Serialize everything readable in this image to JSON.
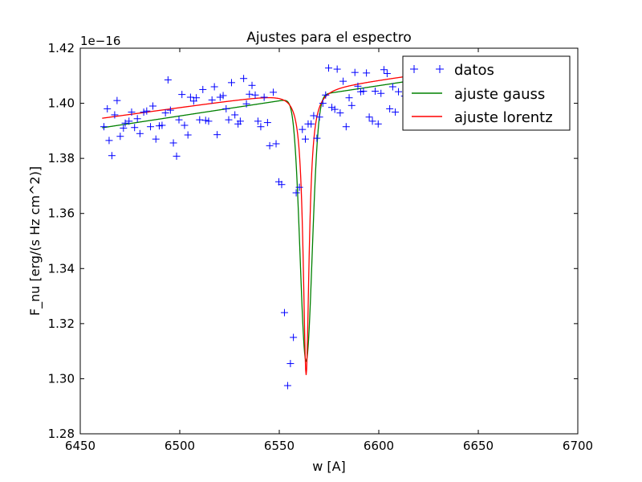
{
  "chart_data": {
    "type": "line",
    "title": "Ajustes para el espectro",
    "xlabel": "w [A]",
    "ylabel": "F_nu [erg/(s Hz cm^2)]",
    "y_offset_label": "1e−16",
    "xlim": [
      6450,
      6700
    ],
    "ylim": [
      1.28,
      1.42
    ],
    "y_scale_factor": 1e-16,
    "x_ticks": [
      6450,
      6500,
      6550,
      6600,
      6650,
      6700
    ],
    "x_tick_labels": [
      "6450",
      "6500",
      "6550",
      "6600",
      "6650",
      "6700"
    ],
    "y_ticks": [
      1.28,
      1.3,
      1.32,
      1.34,
      1.36,
      1.38,
      1.4,
      1.42
    ],
    "y_tick_labels": [
      "1.28",
      "1.30",
      "1.32",
      "1.34",
      "1.36",
      "1.38",
      "1.40",
      "1.42"
    ],
    "grid": false,
    "legend": {
      "position": "upper right",
      "entries": [
        "datos",
        "ajuste gauss",
        "ajuste lorentz"
      ]
    },
    "series": [
      {
        "name": "datos",
        "kind": "scatter",
        "marker": "+",
        "color": "#0000ff",
        "x": [
          6461.9,
          6463.6,
          6464.5,
          6465.9,
          6467.3,
          6468.5,
          6470.1,
          6471.7,
          6472.6,
          6474.5,
          6475.8,
          6477.3,
          6478.7,
          6480.0,
          6481.9,
          6483.4,
          6485.3,
          6486.5,
          6488.0,
          6489.7,
          6491.1,
          6492.8,
          6494.1,
          6495.3,
          6496.8,
          6498.4,
          6499.6,
          6501.1,
          6502.4,
          6504.1,
          6505.4,
          6507.0,
          6508.3,
          6510.0,
          6511.6,
          6513.0,
          6514.5,
          6516.2,
          6517.4,
          6518.8,
          6520.3,
          6521.8,
          6523.3,
          6524.6,
          6526.0,
          6527.7,
          6529.3,
          6530.4,
          6532.1,
          6533.5,
          6535.0,
          6536.3,
          6537.9,
          6539.3,
          6540.7,
          6542.4,
          6544.1,
          6545.2,
          6547.0,
          6548.4,
          6549.8,
          6551.2,
          6552.6,
          6554.2,
          6555.6,
          6557.1,
          6558.5,
          6560.1,
          6561.6,
          6563.1,
          6564.5,
          6566.0,
          6567.3,
          6568.9,
          6570.2,
          6571.9,
          6573.3,
          6574.8,
          6576.4,
          6577.9,
          6579.1,
          6580.6,
          6582.1,
          6583.6,
          6585.1,
          6586.4,
          6588.0,
          6589.5,
          6590.9,
          6592.3,
          6593.8,
          6595.2,
          6596.8,
          6598.2,
          6599.7,
          6601.1,
          6602.6,
          6604.2,
          6605.5,
          6607.0,
          6608.3,
          6609.9,
          6613.0
        ],
        "y": [
          1.3915,
          1.398,
          1.3865,
          1.381,
          1.3958,
          1.401,
          1.388,
          1.391,
          1.3928,
          1.3935,
          1.3968,
          1.3912,
          1.3944,
          1.389,
          1.3968,
          1.3972,
          1.3915,
          1.399,
          1.387,
          1.3918,
          1.392,
          1.3965,
          1.4085,
          1.3975,
          1.3856,
          1.3808,
          1.394,
          1.4032,
          1.392,
          1.3885,
          1.4022,
          1.4008,
          1.402,
          1.394,
          1.405,
          1.3938,
          1.3935,
          1.4012,
          1.406,
          1.3886,
          1.4022,
          1.4028,
          1.398,
          1.394,
          1.4075,
          1.3958,
          1.3925,
          1.3935,
          1.409,
          1.3998,
          1.4033,
          1.4065,
          1.403,
          1.3935,
          1.3915,
          1.4022,
          1.393,
          1.3846,
          1.404,
          1.3853,
          1.3715,
          1.3705,
          1.324,
          1.2975,
          1.3055,
          1.315,
          1.3675,
          1.3695,
          1.3905,
          1.387,
          1.3925,
          1.3925,
          1.3955,
          1.3873,
          1.395,
          1.4,
          1.403,
          1.4128,
          1.3985,
          1.3978,
          1.4124,
          1.3965,
          1.408,
          1.3915,
          1.402,
          1.3992,
          1.4112,
          1.4062,
          1.4042,
          1.4044,
          1.411,
          1.395,
          1.3935,
          1.4044,
          1.3925,
          1.4036,
          1.4122,
          1.4108,
          1.398,
          1.406,
          1.3968,
          1.4042,
          1.4026
        ]
      },
      {
        "name": "ajuste gauss",
        "kind": "line",
        "color": "#008000",
        "model": {
          "type": "gaussian",
          "baseline_a": 1.391,
          "baseline_slope": 0.00011,
          "center": 6563.5,
          "depth": 0.096,
          "sigma": 3.0
        }
      },
      {
        "name": "ajuste lorentz",
        "kind": "line",
        "color": "#ff0000",
        "model": {
          "type": "lorentzian",
          "baseline_a": 1.3945,
          "baseline_slope": 0.0001,
          "center": 6563.5,
          "depth": 0.1035,
          "gamma": 1.8
        }
      }
    ]
  }
}
